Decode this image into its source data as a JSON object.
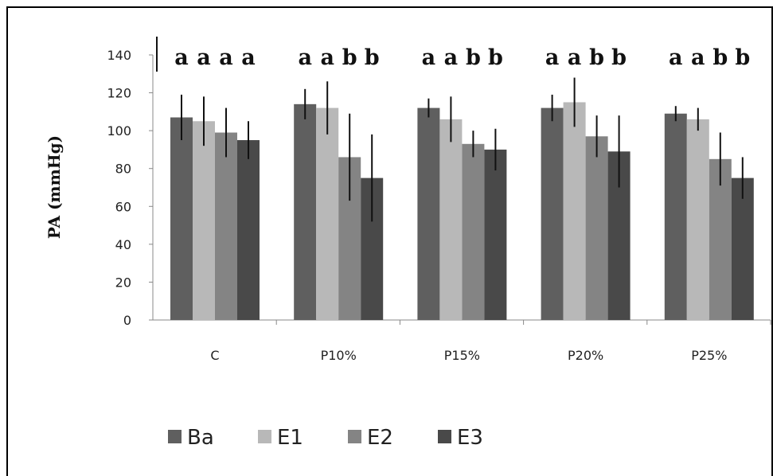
{
  "chart_data": {
    "type": "bar",
    "title": "",
    "xlabel": "",
    "ylabel": "PA  (mmHg)",
    "ylim": [
      0,
      140
    ],
    "yticks": [
      0,
      20,
      40,
      60,
      80,
      100,
      120,
      140
    ],
    "categories": [
      "C",
      "P10%",
      "P15%",
      "P20%",
      "P25%"
    ],
    "series": [
      {
        "name": "Ba",
        "color": "#5f5f5f",
        "values": [
          107,
          114,
          112,
          112,
          109
        ],
        "errors": [
          12,
          8,
          5,
          7,
          4
        ]
      },
      {
        "name": "E1",
        "color": "#b8b8b8",
        "values": [
          105,
          112,
          106,
          115,
          106
        ],
        "errors": [
          13,
          14,
          12,
          13,
          6
        ]
      },
      {
        "name": "E2",
        "color": "#848484",
        "values": [
          99,
          86,
          93,
          97,
          85
        ],
        "errors": [
          13,
          23,
          7,
          11,
          14
        ]
      },
      {
        "name": "E3",
        "color": "#494949",
        "values": [
          95,
          75,
          90,
          89,
          75
        ],
        "errors": [
          10,
          23,
          11,
          19,
          11
        ]
      }
    ],
    "significance": [
      [
        "a",
        "a",
        "a",
        "a"
      ],
      [
        "a",
        "a",
        "b",
        "b"
      ],
      [
        "a",
        "a",
        "b",
        "b"
      ],
      [
        "a",
        "a",
        "b",
        "b"
      ],
      [
        "a",
        "a",
        "b",
        "b"
      ]
    ],
    "grid": false,
    "legend": "bottom"
  }
}
